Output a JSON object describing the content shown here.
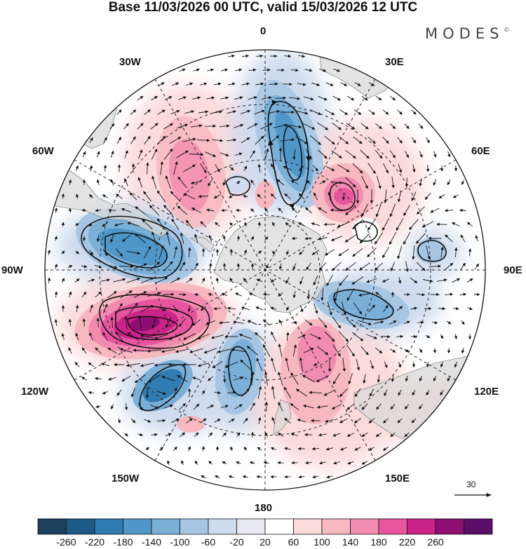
{
  "title": "Base 11/03/2026 00 UTC, valid 15/03/2026 12 UTC",
  "brand": "MODES",
  "brand_mark": "©",
  "longitude_labels": {
    "top": "0",
    "upper_left": "30W",
    "upper_right": "30E",
    "mid_upper_left": "60W",
    "mid_upper_right": "60E",
    "left": "90W",
    "right": "90E",
    "lower_left": "120W",
    "lower_right": "120E",
    "bottom_left": "150W",
    "bottom_right": "150E",
    "bottom": "180"
  },
  "colorbar": {
    "ticks": [
      "-260",
      "-220",
      "-180",
      "-140",
      "-100",
      "-60",
      "-20",
      "20",
      "60",
      "100",
      "140",
      "180",
      "220",
      "260"
    ],
    "colors": [
      "#1c3f5e",
      "#1e5a88",
      "#2f7bb2",
      "#4f97c8",
      "#7ab0d8",
      "#a7c6e4",
      "#cfdcee",
      "#e8e8f2",
      "#ffffff",
      "#fbdada",
      "#f7b8c0",
      "#f28bb0",
      "#e8559f",
      "#cc2388",
      "#8e0e73",
      "#5a1068"
    ]
  },
  "reference_vector": "30",
  "colors": {
    "land": "#e2e2e2",
    "grid": "#222222",
    "contour": "#111111"
  }
}
